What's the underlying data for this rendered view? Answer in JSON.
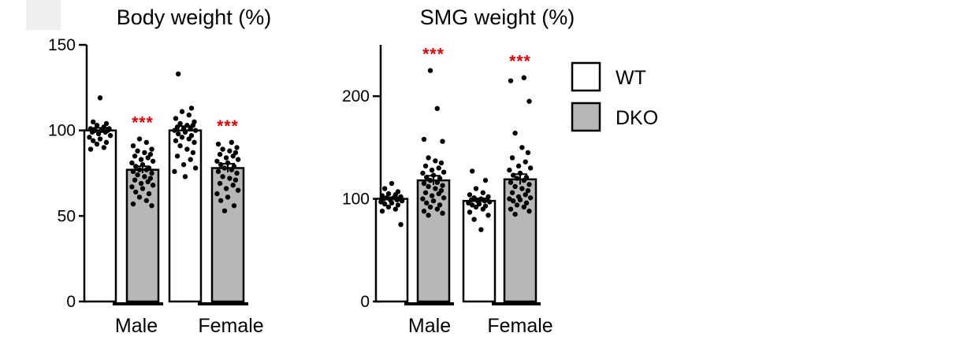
{
  "panel_letter": "",
  "colors": {
    "wt": "#ffffff",
    "dko": "#b7b7b7",
    "significance": "#e00000",
    "dot": "#000000"
  },
  "legend": [
    {
      "name": "WT",
      "color": "#ffffff"
    },
    {
      "name": "DKO",
      "color": "#b7b7b7"
    }
  ],
  "chart_data": [
    {
      "type": "bar",
      "title": "Body weight (%)",
      "xlabel": "",
      "ylabel": "",
      "ylim": [
        0,
        150
      ],
      "yticks": [
        0,
        50,
        100,
        150
      ],
      "groups": [
        "Male",
        "Female"
      ],
      "series": [
        {
          "name": "WT",
          "values": [
            100,
            100
          ]
        },
        {
          "name": "DKO",
          "values": [
            77,
            78
          ]
        }
      ],
      "significance": [
        "***",
        "***"
      ],
      "errors": {
        "WT": [
          1.5,
          2.5
        ],
        "DKO": [
          2.0,
          2.5
        ]
      },
      "points": {
        "WT": [
          [
            119,
            105,
            104,
            103,
            102,
            101,
            101,
            100,
            100,
            100,
            99,
            99,
            98,
            97,
            96,
            95,
            94,
            93,
            92,
            90,
            89
          ],
          [
            133,
            113,
            111,
            109,
            107,
            105,
            104,
            103,
            103,
            102,
            101,
            101,
            100,
            100,
            99,
            98,
            97,
            96,
            95,
            94,
            93,
            91,
            89,
            87,
            85,
            83,
            80,
            78,
            76,
            73
          ]
        ],
        "DKO": [
          [
            95,
            93,
            91,
            89,
            88,
            87,
            86,
            85,
            84,
            83,
            82,
            81,
            80,
            79,
            78,
            77,
            77,
            76,
            75,
            74,
            73,
            72,
            71,
            70,
            69,
            68,
            67,
            66,
            64,
            63,
            61,
            59,
            57,
            56
          ],
          [
            93,
            92,
            90,
            89,
            88,
            87,
            86,
            85,
            84,
            83,
            82,
            81,
            80,
            79,
            78,
            77,
            76,
            75,
            73,
            72,
            71,
            69,
            68,
            66,
            65,
            63,
            61,
            59,
            56,
            53
          ]
        ]
      }
    },
    {
      "type": "bar",
      "title": "SMG weight (%)",
      "xlabel": "",
      "ylabel": "",
      "ylim": [
        0,
        250
      ],
      "yticks": [
        0,
        100,
        200
      ],
      "groups": [
        "Male",
        "Female"
      ],
      "series": [
        {
          "name": "WT",
          "values": [
            100,
            98
          ]
        },
        {
          "name": "DKO",
          "values": [
            118,
            119
          ]
        }
      ],
      "significance": [
        "***",
        "***"
      ],
      "errors": {
        "WT": [
          1.5,
          2.5
        ],
        "DKO": [
          4.5,
          5.0
        ]
      },
      "points": {
        "WT": [
          [
            115,
            110,
            107,
            105,
            104,
            103,
            102,
            101,
            101,
            100,
            100,
            99,
            99,
            98,
            97,
            96,
            95,
            94,
            92,
            90,
            88,
            75
          ],
          [
            127,
            118,
            110,
            106,
            104,
            102,
            101,
            100,
            99,
            99,
            98,
            98,
            97,
            96,
            95,
            94,
            93,
            92,
            90,
            87,
            84,
            80,
            70
          ]
        ],
        "DKO": [
          [
            225,
            188,
            158,
            156,
            140,
            137,
            135,
            132,
            130,
            128,
            126,
            125,
            123,
            121,
            120,
            118,
            116,
            115,
            113,
            112,
            110,
            108,
            106,
            105,
            103,
            101,
            100,
            98,
            96,
            94,
            92,
            90,
            88,
            86,
            84
          ],
          [
            218,
            215,
            195,
            164,
            150,
            145,
            140,
            136,
            132,
            130,
            128,
            125,
            123,
            121,
            120,
            118,
            116,
            114,
            112,
            110,
            108,
            106,
            104,
            102,
            101,
            100,
            99,
            98,
            96,
            94,
            92,
            90,
            88,
            85
          ]
        ]
      }
    }
  ]
}
